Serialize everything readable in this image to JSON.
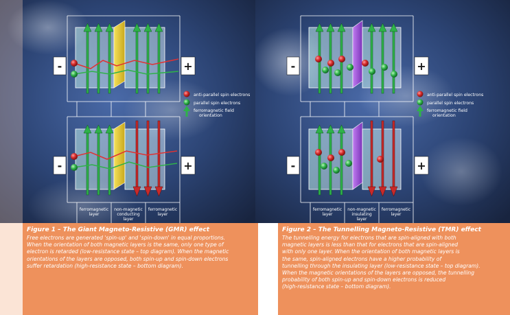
{
  "figure1": {
    "legend": {
      "anti_parallel": "anti-parallel spin electrons",
      "parallel": "parallel spin electrons",
      "field_line1": "ferromagnetic field",
      "field_line2": "orientation"
    },
    "minus": "-",
    "plus": "+",
    "layer_labels": {
      "left1": "ferromagnetic",
      "left2": "layer",
      "mid1": "non-magnetic",
      "mid2": "conducting",
      "mid3": "layer",
      "right1": "ferromagnetic",
      "right2": "layer"
    },
    "caption_title": "Figure 1 – The Giant Magneto-Resistive (GMR) effect",
    "caption_lines": [
      "Free electrons are generated 'spin-up' and 'spin-down' in equal proportions.",
      "When the orientation of both magnetic layers is the same, only one type of",
      "electron is retarded (low-resistance state – top diagram). When the magnetic",
      "orientations of the layers are opposed, both spin-up and spin-down electrons",
      "suffer retardation (high-resistance state – bottom diagram)."
    ]
  },
  "figure2": {
    "legend": {
      "anti_parallel": "anti-parallel spin electrons",
      "parallel": "parallel spin electrons",
      "field_line1": "ferromagnetic field",
      "field_line2": "orientation"
    },
    "minus": "-",
    "plus": "+",
    "layer_labels": {
      "left1": "ferromagnetic",
      "left2": "layer",
      "mid1": "non-magnetic",
      "mid2": "insulating",
      "mid3": "layer",
      "right1": "ferromagnetic",
      "right2": "layer"
    },
    "caption_title": "Figure 2 – The Tunnelling Magneto-Resistive (TMR) effect",
    "caption_lines": [
      "The tunnelling energy for electrons that are spin-aligned with both",
      "magnetic layers is less than that for electrons that are spin-aligned",
      "with only one layer. When the orientation of both magnetic layers is",
      "the same, spin-aligned electrons have a higher probability of",
      "tunnelling through the insulating layer (low-resistance state – top diagram).",
      "When the magnetic orientations of the layers are opposed, the tunnelling",
      "probability of both spin-up and spin-down electrons is reduced",
      "(high-resistance state – bottom diagram)."
    ]
  },
  "colors": {
    "caption_bg": "#ee915c",
    "anti_parallel": "#d42a2a",
    "parallel": "#2fb24a",
    "gmr_spacer": "#e8cf2e",
    "tmr_spacer": "#a35bd8",
    "background": "#2a3f6a"
  }
}
